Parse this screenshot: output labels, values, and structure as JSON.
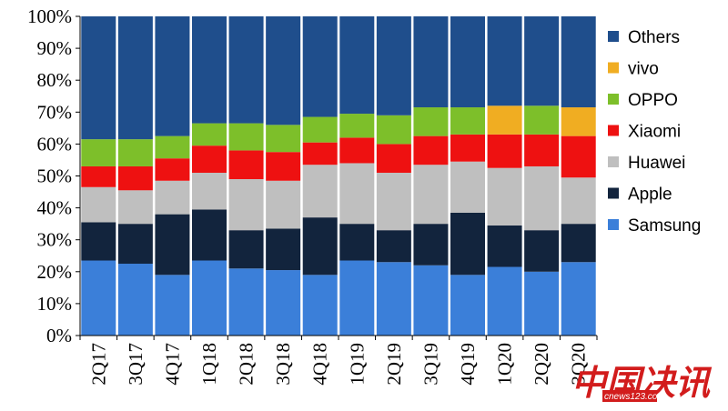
{
  "chart_data": {
    "type": "bar",
    "stacked": true,
    "percent": true,
    "categories": [
      "2Q17",
      "3Q17",
      "4Q17",
      "1Q18",
      "2Q18",
      "3Q18",
      "4Q18",
      "1Q19",
      "2Q19",
      "3Q19",
      "4Q19",
      "1Q20",
      "2Q20",
      "3Q20"
    ],
    "y_ticks": [
      "0%",
      "10%",
      "20%",
      "30%",
      "40%",
      "50%",
      "60%",
      "70%",
      "80%",
      "90%",
      "100%"
    ],
    "ylim": [
      0,
      100
    ],
    "legend_position": "right",
    "series": [
      {
        "name": "Samsung",
        "color": "#3b7fd9",
        "values": [
          23.5,
          22.5,
          19,
          23.5,
          21,
          20.5,
          19,
          23.5,
          23,
          22,
          19,
          21.5,
          20,
          23
        ]
      },
      {
        "name": "Apple",
        "color": "#12243d",
        "values": [
          12,
          12.5,
          19,
          16,
          12,
          13,
          18,
          11.5,
          10,
          13,
          19.5,
          13,
          13,
          12
        ]
      },
      {
        "name": "Huawei",
        "color": "#bfbfbf",
        "values": [
          11,
          10.5,
          10.5,
          11.5,
          16,
          15,
          16.5,
          19,
          18,
          18.5,
          16,
          18,
          20,
          14.5
        ]
      },
      {
        "name": "Xiaomi",
        "color": "#ee1111",
        "values": [
          6.5,
          7.5,
          7,
          8.5,
          9,
          9,
          7,
          8,
          9,
          9,
          8.5,
          10.5,
          10,
          13
        ]
      },
      {
        "name": "OPPO",
        "color": "#7dbf2a",
        "values": [
          8.5,
          8.5,
          7,
          7,
          8.5,
          8.5,
          8,
          7.5,
          9,
          9,
          8.5,
          0,
          9,
          0
        ]
      },
      {
        "name": "vivo",
        "color": "#f0ad22",
        "values": [
          0,
          0,
          0,
          0,
          0,
          0,
          0,
          0,
          0,
          0,
          0,
          9,
          0,
          9
        ]
      },
      {
        "name": "Others",
        "color": "#1f4e8c",
        "values": [
          38.5,
          38.5,
          37.5,
          33.5,
          33.5,
          34,
          31.5,
          30.5,
          31,
          28.5,
          28.5,
          28,
          28,
          28.5
        ]
      }
    ],
    "legend_order": [
      "Others",
      "vivo",
      "OPPO",
      "Xiaomi",
      "Huawei",
      "Apple",
      "Samsung"
    ]
  },
  "watermark": {
    "main": "中国决讯",
    "sub": "cnews123.com"
  }
}
